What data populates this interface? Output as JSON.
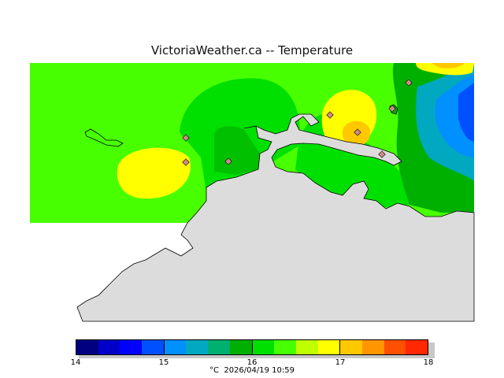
{
  "title": "VictoriaWeather.ca -- Temperature",
  "legend": {
    "min_label": "14",
    "ticks": [
      "14",
      "15",
      "16",
      "17",
      "18"
    ],
    "colors": [
      "#000080",
      "#0000c8",
      "#0000ff",
      "#0050ff",
      "#0090ff",
      "#00a8c0",
      "#00b070",
      "#00b000",
      "#00e000",
      "#48ff00",
      "#c0ff00",
      "#ffff00",
      "#ffc800",
      "#ff9600",
      "#ff5000",
      "#ff2800",
      "#ff0000"
    ],
    "units_label": "°C",
    "timestamp": "2026/04/19 10:59"
  },
  "colors": {
    "land": "#dcdcdc",
    "base_field": "#48ff00",
    "warm": "#ffff00",
    "warmer": "#ffc800",
    "cool": "#00b000",
    "cooler": "#00b070",
    "cold": "#0090ff",
    "coldest": "#0050ff"
  },
  "stations": [
    "station-1",
    "station-2",
    "station-3",
    "station-4",
    "station-5",
    "station-6",
    "station-7",
    "station-8"
  ]
}
